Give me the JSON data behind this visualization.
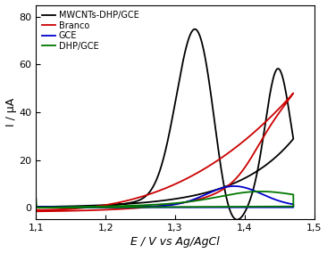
{
  "title": "",
  "xlabel": "E / V vs Ag/AgCl",
  "ylabel": "I / μA",
  "xlim": [
    1.1,
    1.5
  ],
  "ylim": [
    -5,
    85
  ],
  "xticks": [
    1.1,
    1.2,
    1.3,
    1.4,
    1.5
  ],
  "yticks": [
    0,
    20,
    40,
    60,
    80
  ],
  "legend": [
    "MWCNTs-DHP/GCE",
    "Branco",
    "GCE",
    "DHP/GCE"
  ],
  "colors": {
    "black": "#000000",
    "red": "#cc0000",
    "blue": "#0000cc",
    "green": "#007700"
  },
  "background_color": "#ffffff"
}
